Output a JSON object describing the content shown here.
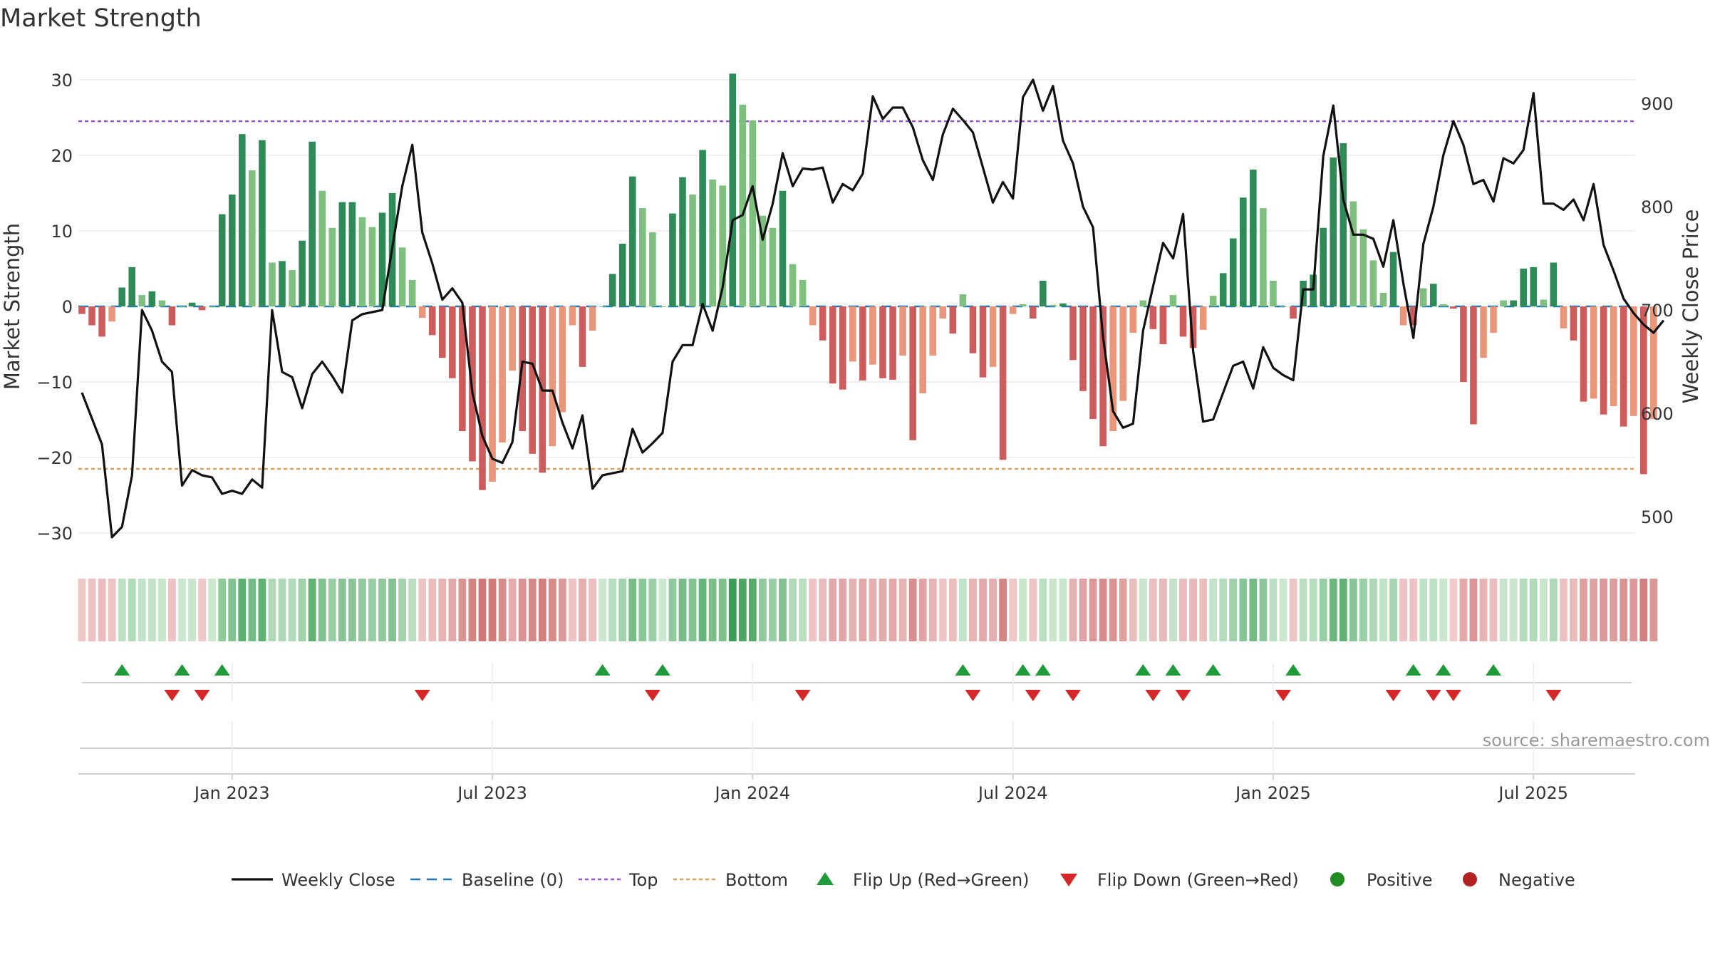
{
  "chart_data": {
    "type": "bar",
    "title": "Market Strength",
    "ylabel_left": "Market Strength",
    "ylabel_right": "Weekly Close Price",
    "left_ylim": [
      -33,
      33
    ],
    "right_ylim": [
      462,
      945
    ],
    "left_ticks": [
      30,
      20,
      10,
      0,
      -10,
      -20,
      -30
    ],
    "left_tick_labels": [
      "30",
      "20",
      "10",
      "0",
      "−10",
      "−20",
      "−30"
    ],
    "right_ticks": [
      900,
      800,
      700,
      600,
      500
    ],
    "right_tick_labels": [
      "900",
      "800",
      "700",
      "600",
      "500"
    ],
    "x_tick_indices": [
      15,
      41,
      67,
      93,
      119,
      145
    ],
    "x_tick_labels": [
      "Jan 2023",
      "Jul 2023",
      "Jan 2024",
      "Jul 2024",
      "Jan 2025",
      "Jul 2025"
    ],
    "top_line": 24.5,
    "bottom_line": -21.5,
    "baseline": 0,
    "strength": [
      -1,
      -2.5,
      -4,
      -2,
      2.5,
      5.2,
      1.5,
      2,
      0.8,
      -2.5,
      0,
      0.5,
      -0.5,
      0,
      12.2,
      14.8,
      22.8,
      18,
      22,
      5.8,
      6,
      4.8,
      8.7,
      21.8,
      15.3,
      10.4,
      13.8,
      13.8,
      11.8,
      10.5,
      12.4,
      15,
      7.8,
      3.5,
      -1.5,
      -3.8,
      -6.8,
      -9.5,
      -16.5,
      -20.5,
      -24.3,
      -23.2,
      -18,
      -8.5,
      -16.5,
      -19.5,
      -22,
      -18.5,
      -14,
      -2.5,
      -8,
      -3.2,
      0,
      4.3,
      8.3,
      17.2,
      13,
      9.8,
      0,
      12.3,
      17.1,
      14.8,
      20.7,
      16.8,
      16,
      30.8,
      26.7,
      24.6,
      12,
      10.4,
      15.3,
      5.6,
      3.5,
      -2.5,
      -4.5,
      -10.2,
      -11,
      -7.3,
      -9.8,
      -7.7,
      -9.5,
      -9.7,
      -6.5,
      -17.7,
      -11.5,
      -6.5,
      -1.6,
      -3.6,
      1.6,
      -6.2,
      -9.4,
      -8,
      -20.3,
      -1,
      0.3,
      -1.6,
      3.4,
      0.2,
      0.4,
      -7.1,
      -11.2,
      -14.9,
      -18.5,
      -16.5,
      -12.5,
      -3.5,
      0.8,
      -3,
      -5,
      1.5,
      -4,
      -5.5,
      -3.1,
      1.4,
      4.4,
      9,
      14.4,
      18.1,
      13,
      3.4,
      0,
      -1.6,
      3.4,
      4.2,
      10.4,
      19.7,
      21.6,
      13.9,
      10.2,
      6.1,
      1.8,
      7.2,
      -2.5,
      -2.5,
      2.4,
      3,
      0.3,
      -0.3,
      -10,
      -15.6,
      -6.8,
      -3.5,
      0.8,
      0.8,
      5,
      5.2,
      0.9,
      5.8,
      -2.9,
      -4.5,
      -12.6,
      -12.2,
      -14.3,
      -13.2,
      -15.9,
      -14.5,
      -22.2,
      -14.9
    ],
    "weekly_close": [
      [
        0,
        620
      ],
      [
        2,
        570
      ],
      [
        3,
        480
      ],
      [
        4,
        490
      ],
      [
        5,
        540
      ],
      [
        6,
        700
      ],
      [
        7,
        680
      ],
      [
        8,
        650
      ],
      [
        9,
        640
      ],
      [
        10,
        530
      ],
      [
        11,
        545
      ],
      [
        12,
        540
      ],
      [
        13,
        538
      ],
      [
        14,
        522
      ],
      [
        15,
        525
      ],
      [
        16,
        522
      ],
      [
        17,
        536
      ],
      [
        18,
        528
      ],
      [
        19,
        700
      ],
      [
        20,
        640
      ],
      [
        21,
        635
      ],
      [
        22,
        605
      ],
      [
        23,
        638
      ],
      [
        24,
        650
      ],
      [
        25,
        636
      ],
      [
        26,
        620
      ],
      [
        27,
        690
      ],
      [
        28,
        696
      ],
      [
        29,
        698
      ],
      [
        30,
        700
      ],
      [
        31,
        760
      ],
      [
        32,
        820
      ],
      [
        33,
        860
      ],
      [
        34,
        775
      ],
      [
        35,
        745
      ],
      [
        36,
        710
      ],
      [
        37,
        721
      ],
      [
        38,
        707
      ],
      [
        39,
        620
      ],
      [
        40,
        578
      ],
      [
        41,
        556
      ],
      [
        42,
        552
      ],
      [
        43,
        572
      ],
      [
        44,
        650
      ],
      [
        45,
        648
      ],
      [
        46,
        622
      ],
      [
        47,
        622
      ],
      [
        48,
        591
      ],
      [
        49,
        566
      ],
      [
        50,
        598
      ],
      [
        51,
        527
      ],
      [
        52,
        540
      ],
      [
        53,
        542
      ],
      [
        54,
        544
      ],
      [
        55,
        585
      ],
      [
        56,
        562
      ],
      [
        57,
        571
      ],
      [
        58,
        581
      ],
      [
        59,
        650
      ],
      [
        60,
        666
      ],
      [
        61,
        666
      ],
      [
        62,
        706
      ],
      [
        63,
        680
      ],
      [
        64,
        722
      ],
      [
        65,
        787
      ],
      [
        66,
        792
      ],
      [
        67,
        820
      ],
      [
        68,
        768
      ],
      [
        69,
        803
      ],
      [
        70,
        852
      ],
      [
        71,
        820
      ],
      [
        72,
        837
      ],
      [
        73,
        836
      ],
      [
        74,
        838
      ],
      [
        75,
        804
      ],
      [
        76,
        822
      ],
      [
        77,
        816
      ],
      [
        78,
        832
      ],
      [
        79,
        907
      ],
      [
        80,
        885
      ],
      [
        81,
        896
      ],
      [
        82,
        896
      ],
      [
        83,
        877
      ],
      [
        84,
        845
      ],
      [
        85,
        826
      ],
      [
        86,
        870
      ],
      [
        87,
        895
      ],
      [
        88,
        884
      ],
      [
        89,
        872
      ],
      [
        90,
        838
      ],
      [
        91,
        804
      ],
      [
        92,
        824
      ],
      [
        93,
        808
      ],
      [
        94,
        906
      ],
      [
        95,
        923
      ],
      [
        96,
        893
      ],
      [
        97,
        917
      ],
      [
        98,
        864
      ],
      [
        99,
        842
      ],
      [
        100,
        800
      ],
      [
        101,
        780
      ],
      [
        102,
        674
      ],
      [
        103,
        602
      ],
      [
        104,
        586
      ],
      [
        105,
        590
      ],
      [
        106,
        680
      ],
      [
        107,
        723
      ],
      [
        108,
        765
      ],
      [
        109,
        750
      ],
      [
        110,
        793
      ],
      [
        111,
        660
      ],
      [
        112,
        592
      ],
      [
        113,
        594
      ],
      [
        114,
        620
      ],
      [
        115,
        646
      ],
      [
        116,
        650
      ],
      [
        117,
        624
      ],
      [
        118,
        664
      ],
      [
        119,
        644
      ],
      [
        120,
        637
      ],
      [
        121,
        632
      ],
      [
        122,
        720
      ],
      [
        123,
        720
      ],
      [
        124,
        849
      ],
      [
        125,
        898
      ],
      [
        126,
        807
      ],
      [
        127,
        773
      ],
      [
        128,
        773
      ],
      [
        129,
        769
      ],
      [
        130,
        742
      ],
      [
        131,
        787
      ],
      [
        132,
        726
      ],
      [
        133,
        673
      ],
      [
        134,
        764
      ],
      [
        135,
        800
      ],
      [
        136,
        850
      ],
      [
        137,
        883
      ],
      [
        138,
        860
      ],
      [
        139,
        822
      ],
      [
        140,
        826
      ],
      [
        141,
        805
      ],
      [
        142,
        847
      ],
      [
        143,
        842
      ],
      [
        144,
        855
      ],
      [
        145,
        910
      ],
      [
        146,
        803
      ],
      [
        147,
        803
      ],
      [
        148,
        797
      ],
      [
        149,
        807
      ],
      [
        150,
        787
      ],
      [
        151,
        822
      ],
      [
        152,
        763
      ],
      [
        153,
        738
      ],
      [
        154,
        711
      ],
      [
        155,
        697
      ],
      [
        156,
        686
      ],
      [
        157,
        678
      ],
      [
        158,
        690
      ]
    ],
    "flip_up": [
      4,
      10,
      14,
      52,
      58,
      88,
      94,
      96,
      106,
      109,
      113,
      121,
      133,
      136,
      141
    ],
    "flip_down": [
      9,
      12,
      34,
      57,
      72,
      89,
      95,
      99,
      107,
      110,
      120,
      131,
      135,
      137,
      147
    ],
    "legend": [
      "Weekly Close",
      "Baseline (0)",
      "Top",
      "Bottom",
      "Flip Up (Red→Green)",
      "Flip Down (Green→Red)",
      "Positive",
      "Negative"
    ]
  },
  "colors": {
    "pos_dark": "#2e8b57",
    "pos_light": "#7fbf7f",
    "neg_dark": "#cd5c5c",
    "neg_light": "#e9967a",
    "flip_up": "#1f9b3a",
    "flip_down": "#d62728",
    "line": "#111111",
    "top": "#9955cc",
    "bottom": "#d9a25a",
    "baseline": "#1f77b4",
    "positive": "#228b22",
    "negative": "#b22222"
  },
  "source": "source: sharemaestro.com"
}
